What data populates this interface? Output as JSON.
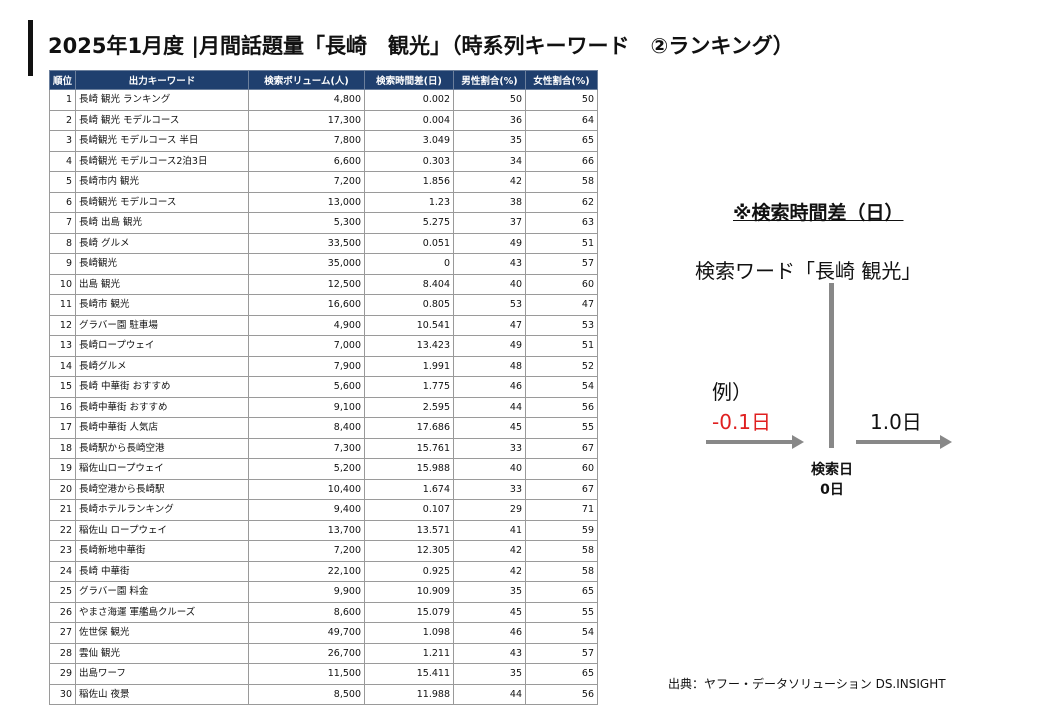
{
  "title": "2025年1月度 |月間話題量「長崎　観光」（時系列キーワード　②ランキング）",
  "table": {
    "headers": [
      "順位",
      "出力キーワード",
      "検索ボリューム(人)",
      "検索時間差(日)",
      "男性割合(%)",
      "女性割合(%)"
    ],
    "rows": [
      [
        "1",
        "長崎 観光 ランキング",
        "4,800",
        "0.002",
        "50",
        "50"
      ],
      [
        "2",
        "長崎 観光 モデルコース",
        "17,300",
        "0.004",
        "36",
        "64"
      ],
      [
        "3",
        "長崎観光 モデルコース 半日",
        "7,800",
        "3.049",
        "35",
        "65"
      ],
      [
        "4",
        "長崎観光 モデルコース2泊3日",
        "6,600",
        "0.303",
        "34",
        "66"
      ],
      [
        "5",
        "長崎市内 観光",
        "7,200",
        "1.856",
        "42",
        "58"
      ],
      [
        "6",
        "長崎観光 モデルコース",
        "13,000",
        "1.23",
        "38",
        "62"
      ],
      [
        "7",
        "長崎 出島 観光",
        "5,300",
        "5.275",
        "37",
        "63"
      ],
      [
        "8",
        "長崎 グルメ",
        "33,500",
        "0.051",
        "49",
        "51"
      ],
      [
        "9",
        "長崎観光",
        "35,000",
        "0",
        "43",
        "57"
      ],
      [
        "10",
        "出島 観光",
        "12,500",
        "8.404",
        "40",
        "60"
      ],
      [
        "11",
        "長崎市 観光",
        "16,600",
        "0.805",
        "53",
        "47"
      ],
      [
        "12",
        "グラバー園 駐車場",
        "4,900",
        "10.541",
        "47",
        "53"
      ],
      [
        "13",
        "長崎ロープウェイ",
        "7,000",
        "13.423",
        "49",
        "51"
      ],
      [
        "14",
        "長崎グルメ",
        "7,900",
        "1.991",
        "48",
        "52"
      ],
      [
        "15",
        "長崎 中華街 おすすめ",
        "5,600",
        "1.775",
        "46",
        "54"
      ],
      [
        "16",
        "長崎中華街 おすすめ",
        "9,100",
        "2.595",
        "44",
        "56"
      ],
      [
        "17",
        "長崎中華街 人気店",
        "8,400",
        "17.686",
        "45",
        "55"
      ],
      [
        "18",
        "長崎駅から長崎空港",
        "7,300",
        "15.761",
        "33",
        "67"
      ],
      [
        "19",
        "稲佐山ロープウェイ",
        "5,200",
        "15.988",
        "40",
        "60"
      ],
      [
        "20",
        "長崎空港から長崎駅",
        "10,400",
        "1.674",
        "33",
        "67"
      ],
      [
        "21",
        "長崎ホテルランキング",
        "9,400",
        "0.107",
        "29",
        "71"
      ],
      [
        "22",
        "稲佐山 ロープウェイ",
        "13,700",
        "13.571",
        "41",
        "59"
      ],
      [
        "23",
        "長崎新地中華街",
        "7,200",
        "12.305",
        "42",
        "58"
      ],
      [
        "24",
        "長崎 中華街",
        "22,100",
        "0.925",
        "42",
        "58"
      ],
      [
        "25",
        "グラバー園 料金",
        "9,900",
        "10.909",
        "35",
        "65"
      ],
      [
        "26",
        "やまさ海運 軍艦島クルーズ",
        "8,600",
        "15.079",
        "45",
        "55"
      ],
      [
        "27",
        "佐世保 観光",
        "49,700",
        "1.098",
        "46",
        "54"
      ],
      [
        "28",
        "雲仙 観光",
        "26,700",
        "1.211",
        "43",
        "57"
      ],
      [
        "29",
        "出島ワーフ",
        "11,500",
        "15.411",
        "35",
        "65"
      ],
      [
        "30",
        "稲佐山 夜景",
        "8,500",
        "11.988",
        "44",
        "56"
      ]
    ]
  },
  "note": {
    "title": "※検索時間差（日）",
    "keyword_label": "検索ワード「長崎 観光」",
    "example_label": "例）",
    "negative_value": "-0.1日",
    "positive_value": "1.0日",
    "base_line1": "検索日",
    "base_line2": "0日",
    "negative_color": "#e02020"
  },
  "source": "出典：ヤフー・データソリューション DS.INSIGHT",
  "colors": {
    "header_bg": "#1f3f6e",
    "header_text": "#ffffff",
    "arrow": "#888888"
  }
}
